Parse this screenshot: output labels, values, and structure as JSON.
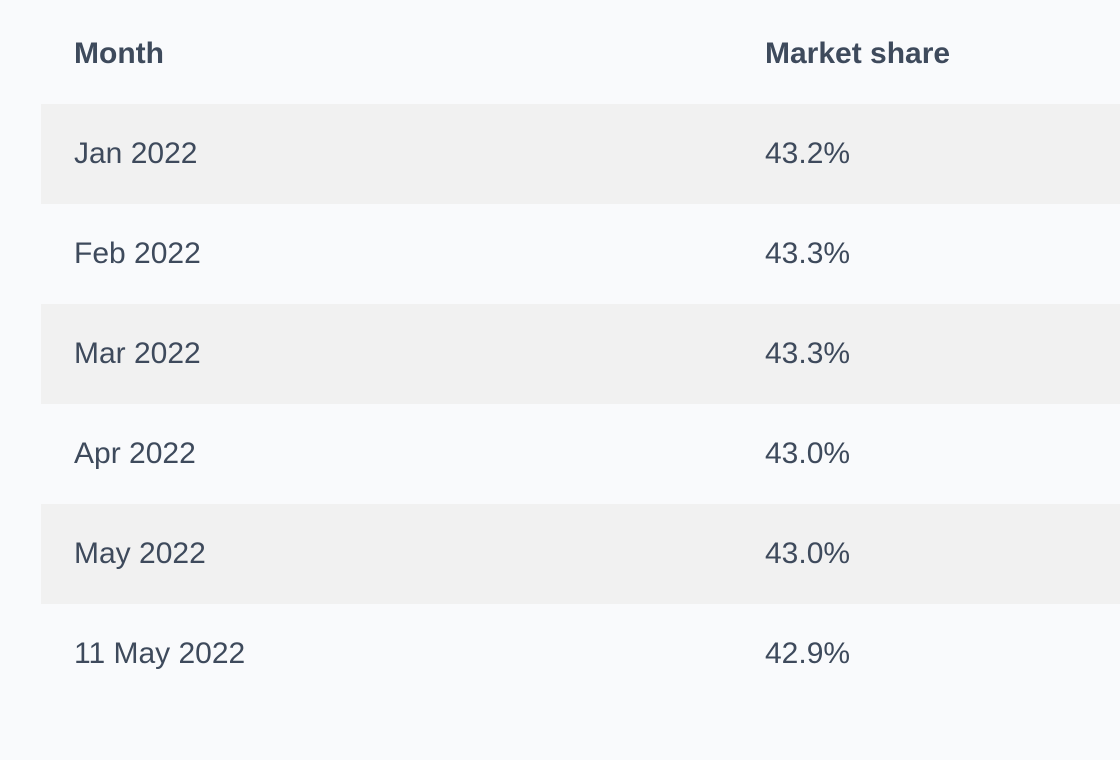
{
  "table": {
    "headers": {
      "month": "Month",
      "share": "Market share"
    },
    "rows": [
      {
        "month": "Jan 2022",
        "share": "43.2%"
      },
      {
        "month": "Feb 2022",
        "share": "43.3%"
      },
      {
        "month": "Mar 2022",
        "share": "43.3%"
      },
      {
        "month": "Apr 2022",
        "share": "43.0%"
      },
      {
        "month": "May 2022",
        "share": "43.0%"
      },
      {
        "month": "11 May 2022",
        "share": "42.9%"
      }
    ]
  },
  "colors": {
    "page_background": "#f9fafc",
    "stripe_background": "#f1f1f1",
    "text": "#3e4a5c"
  }
}
